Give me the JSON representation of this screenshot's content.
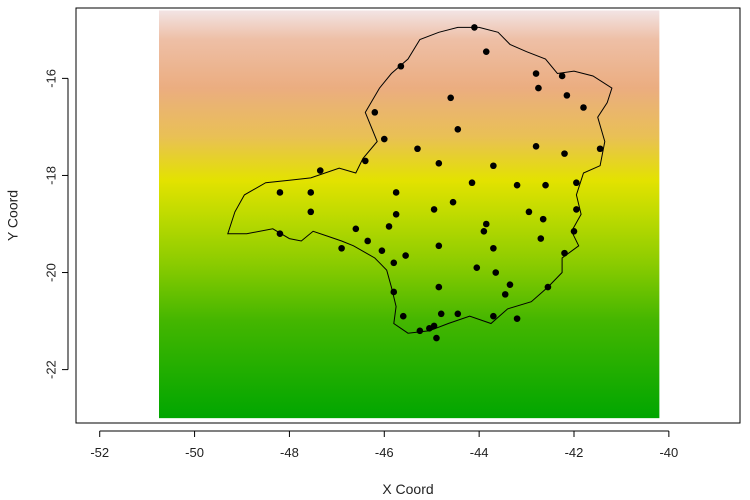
{
  "chart_data": {
    "type": "scatter",
    "xlabel": "X Coord",
    "ylabel": "Y Coord",
    "xlim": [
      -52.5,
      -38.5
    ],
    "ylim": [
      -23.1,
      -14.55
    ],
    "x_ticks": [
      -52,
      -50,
      -48,
      -46,
      -44,
      -42,
      -40
    ],
    "y_ticks": [
      -22,
      -20,
      -18,
      -16
    ],
    "grid": false,
    "legend": "none",
    "raster": {
      "x_range": [
        -50.75,
        -40.2
      ],
      "y_range": [
        -23.0,
        -14.6
      ],
      "color_stops": [
        {
          "y": -14.6,
          "color": "#f2e4e4"
        },
        {
          "y": -15.2,
          "color": "#eebfa6"
        },
        {
          "y": -16.2,
          "color": "#ebad80"
        },
        {
          "y": -17.2,
          "color": "#e9c055"
        },
        {
          "y": -18.1,
          "color": "#e3e200"
        },
        {
          "y": -18.8,
          "color": "#bfdb00"
        },
        {
          "y": -19.8,
          "color": "#8ccc00"
        },
        {
          "y": -21.0,
          "color": "#44b600"
        },
        {
          "y": -23.0,
          "color": "#00a600"
        }
      ]
    },
    "boundary": [
      [
        -44.0,
        -14.95
      ],
      [
        -43.6,
        -15.05
      ],
      [
        -43.35,
        -15.3
      ],
      [
        -43.0,
        -15.45
      ],
      [
        -42.6,
        -15.6
      ],
      [
        -42.35,
        -15.9
      ],
      [
        -42.0,
        -15.85
      ],
      [
        -41.6,
        -15.95
      ],
      [
        -41.2,
        -16.2
      ],
      [
        -41.3,
        -16.5
      ],
      [
        -41.5,
        -16.8
      ],
      [
        -41.35,
        -17.3
      ],
      [
        -41.45,
        -17.8
      ],
      [
        -41.8,
        -17.95
      ],
      [
        -41.95,
        -18.4
      ],
      [
        -41.85,
        -18.8
      ],
      [
        -42.05,
        -19.15
      ],
      [
        -41.9,
        -19.45
      ],
      [
        -42.25,
        -19.7
      ],
      [
        -42.25,
        -20.0
      ],
      [
        -42.55,
        -20.3
      ],
      [
        -42.9,
        -20.6
      ],
      [
        -43.4,
        -20.75
      ],
      [
        -43.75,
        -21.05
      ],
      [
        -44.2,
        -20.9
      ],
      [
        -44.65,
        -21.05
      ],
      [
        -45.05,
        -21.2
      ],
      [
        -45.5,
        -21.25
      ],
      [
        -45.8,
        -21.05
      ],
      [
        -45.75,
        -20.7
      ],
      [
        -45.85,
        -20.3
      ],
      [
        -45.95,
        -19.95
      ],
      [
        -46.2,
        -19.7
      ],
      [
        -46.65,
        -19.45
      ],
      [
        -46.9,
        -19.35
      ],
      [
        -47.2,
        -19.25
      ],
      [
        -47.5,
        -19.15
      ],
      [
        -47.75,
        -19.35
      ],
      [
        -48.0,
        -19.3
      ],
      [
        -48.35,
        -19.1
      ],
      [
        -48.9,
        -19.2
      ],
      [
        -49.3,
        -19.2
      ],
      [
        -49.15,
        -18.75
      ],
      [
        -48.95,
        -18.4
      ],
      [
        -48.5,
        -18.15
      ],
      [
        -48.0,
        -18.1
      ],
      [
        -47.55,
        -18.05
      ],
      [
        -47.25,
        -17.95
      ],
      [
        -46.95,
        -17.85
      ],
      [
        -46.6,
        -17.95
      ],
      [
        -46.45,
        -17.65
      ],
      [
        -46.15,
        -17.3
      ],
      [
        -46.4,
        -16.7
      ],
      [
        -46.1,
        -16.2
      ],
      [
        -45.85,
        -15.9
      ],
      [
        -45.5,
        -15.6
      ],
      [
        -45.25,
        -15.2
      ],
      [
        -44.85,
        -15.05
      ],
      [
        -44.45,
        -14.95
      ]
    ],
    "points": [
      [
        -44.1,
        -14.95
      ],
      [
        -43.85,
        -15.45
      ],
      [
        -42.8,
        -15.9
      ],
      [
        -42.25,
        -15.95
      ],
      [
        -45.65,
        -15.75
      ],
      [
        -42.75,
        -16.2
      ],
      [
        -42.15,
        -16.35
      ],
      [
        -44.6,
        -16.4
      ],
      [
        -41.8,
        -16.6
      ],
      [
        -46.2,
        -16.7
      ],
      [
        -44.45,
        -17.05
      ],
      [
        -46.0,
        -17.25
      ],
      [
        -42.8,
        -17.4
      ],
      [
        -45.3,
        -17.45
      ],
      [
        -41.45,
        -17.45
      ],
      [
        -42.2,
        -17.55
      ],
      [
        -46.4,
        -17.7
      ],
      [
        -44.85,
        -17.75
      ],
      [
        -43.7,
        -17.8
      ],
      [
        -47.35,
        -17.9
      ],
      [
        -44.15,
        -18.15
      ],
      [
        -43.2,
        -18.2
      ],
      [
        -42.6,
        -18.2
      ],
      [
        -41.95,
        -18.15
      ],
      [
        -47.55,
        -18.35
      ],
      [
        -48.2,
        -18.35
      ],
      [
        -45.75,
        -18.35
      ],
      [
        -44.55,
        -18.55
      ],
      [
        -44.95,
        -18.7
      ],
      [
        -47.55,
        -18.75
      ],
      [
        -45.75,
        -18.8
      ],
      [
        -42.95,
        -18.75
      ],
      [
        -41.95,
        -18.7
      ],
      [
        -42.65,
        -18.9
      ],
      [
        -43.85,
        -19.0
      ],
      [
        -45.9,
        -19.05
      ],
      [
        -43.9,
        -19.15
      ],
      [
        -46.6,
        -19.1
      ],
      [
        -42.0,
        -19.15
      ],
      [
        -48.2,
        -19.2
      ],
      [
        -42.7,
        -19.3
      ],
      [
        -46.35,
        -19.35
      ],
      [
        -44.85,
        -19.45
      ],
      [
        -43.7,
        -19.5
      ],
      [
        -46.9,
        -19.5
      ],
      [
        -46.05,
        -19.55
      ],
      [
        -45.55,
        -19.65
      ],
      [
        -42.2,
        -19.6
      ],
      [
        -45.8,
        -19.8
      ],
      [
        -44.05,
        -19.9
      ],
      [
        -43.65,
        -20.0
      ],
      [
        -43.35,
        -20.25
      ],
      [
        -42.55,
        -20.3
      ],
      [
        -44.85,
        -20.3
      ],
      [
        -43.45,
        -20.45
      ],
      [
        -45.8,
        -20.4
      ],
      [
        -44.8,
        -20.85
      ],
      [
        -43.7,
        -20.9
      ],
      [
        -44.45,
        -20.85
      ],
      [
        -45.6,
        -20.9
      ],
      [
        -43.2,
        -20.95
      ],
      [
        -44.95,
        -21.1
      ],
      [
        -45.05,
        -21.15
      ],
      [
        -45.25,
        -21.2
      ],
      [
        -44.9,
        -21.35
      ]
    ]
  }
}
